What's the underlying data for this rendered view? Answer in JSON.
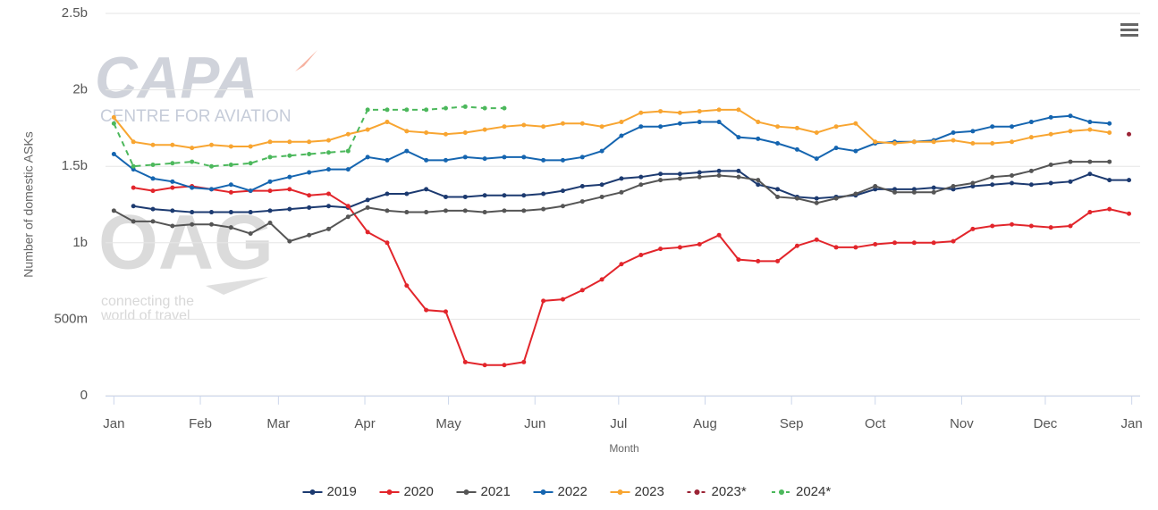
{
  "chart_data": {
    "type": "line",
    "y_axis_label": "Number of domestic ASKs",
    "x_axis_label": "Month",
    "watermark": {
      "logo_1": "CAPA",
      "logo_1_sub": "CENTRE FOR AVIATION",
      "logo_2": "OAG",
      "logo_2_sub_1": "connecting the",
      "logo_2_sub_2": "world of travel"
    },
    "xlim": [
      -3,
      368
    ],
    "xticks": [
      {
        "value": 0,
        "label": "Jan"
      },
      {
        "value": 31,
        "label": "Feb"
      },
      {
        "value": 59,
        "label": "Mar"
      },
      {
        "value": 90,
        "label": "Apr"
      },
      {
        "value": 120,
        "label": "May"
      },
      {
        "value": 151,
        "label": "Jun"
      },
      {
        "value": 181,
        "label": "Jul"
      },
      {
        "value": 212,
        "label": "Aug"
      },
      {
        "value": 243,
        "label": "Sep"
      },
      {
        "value": 273,
        "label": "Oct"
      },
      {
        "value": 304,
        "label": "Nov"
      },
      {
        "value": 334,
        "label": "Dec"
      },
      {
        "value": 365,
        "label": "Jan"
      }
    ],
    "ylim": [
      0,
      2.5
    ],
    "yticks": [
      {
        "value": 0,
        "label": "0"
      },
      {
        "value": 0.5,
        "label": "500m"
      },
      {
        "value": 1,
        "label": "1b"
      },
      {
        "value": 1.5,
        "label": "1.5b"
      },
      {
        "value": 2,
        "label": "2b"
      },
      {
        "value": 2.5,
        "label": "2.5b"
      }
    ],
    "grid": true,
    "x": [
      0,
      7,
      14,
      21,
      28,
      35,
      42,
      49,
      56,
      63,
      70,
      77,
      84,
      91,
      98,
      105,
      112,
      119,
      126,
      133,
      140,
      147,
      154,
      161,
      168,
      175,
      182,
      189,
      196,
      203,
      210,
      217,
      224,
      231,
      238,
      245,
      252,
      259,
      266,
      273,
      280,
      287,
      294,
      301,
      308,
      315,
      322,
      329,
      336,
      343,
      350,
      357,
      364
    ],
    "series": [
      {
        "name": "2019",
        "color": "#1c3a70",
        "dashed": false,
        "values": [
          null,
          1.24,
          1.22,
          1.21,
          1.2,
          1.2,
          1.2,
          1.2,
          1.21,
          1.22,
          1.23,
          1.24,
          1.23,
          1.28,
          1.32,
          1.32,
          1.35,
          1.3,
          1.3,
          1.31,
          1.31,
          1.31,
          1.32,
          1.34,
          1.37,
          1.38,
          1.42,
          1.43,
          1.45,
          1.45,
          1.46,
          1.47,
          1.47,
          1.38,
          1.35,
          1.3,
          1.29,
          1.3,
          1.31,
          1.35,
          1.35,
          1.35,
          1.36,
          1.35,
          1.37,
          1.38,
          1.39,
          1.38,
          1.39,
          1.4,
          1.45,
          1.41,
          1.41
        ]
      },
      {
        "name": "2020",
        "color": "#e2252b",
        "dashed": false,
        "values": [
          null,
          1.36,
          1.34,
          1.36,
          1.37,
          1.35,
          1.33,
          1.34,
          1.34,
          1.35,
          1.31,
          1.32,
          1.24,
          1.07,
          1.0,
          0.72,
          0.56,
          0.55,
          0.22,
          0.2,
          0.2,
          0.22,
          0.62,
          0.63,
          0.69,
          0.76,
          0.86,
          0.92,
          0.96,
          0.97,
          0.99,
          1.05,
          0.89,
          0.88,
          0.88,
          0.98,
          1.02,
          0.97,
          0.97,
          0.99,
          1.0,
          1.0,
          1.0,
          1.01,
          1.09,
          1.11,
          1.12,
          1.11,
          1.1,
          1.11,
          1.2,
          1.22,
          1.19
        ]
      },
      {
        "name": "2021",
        "color": "#555555",
        "dashed": false,
        "values": [
          1.21,
          1.14,
          1.14,
          1.11,
          1.12,
          1.12,
          1.1,
          1.06,
          1.13,
          1.01,
          1.05,
          1.09,
          1.17,
          1.23,
          1.21,
          1.2,
          1.2,
          1.21,
          1.21,
          1.2,
          1.21,
          1.21,
          1.22,
          1.24,
          1.27,
          1.3,
          1.33,
          1.38,
          1.41,
          1.42,
          1.43,
          1.44,
          1.43,
          1.41,
          1.3,
          1.29,
          1.26,
          1.29,
          1.32,
          1.37,
          1.33,
          1.33,
          1.33,
          1.37,
          1.39,
          1.43,
          1.44,
          1.47,
          1.51,
          1.53,
          1.53,
          1.53,
          null
        ]
      },
      {
        "name": "2022",
        "color": "#1565b0",
        "dashed": false,
        "values": [
          1.58,
          1.48,
          1.42,
          1.4,
          1.36,
          1.35,
          1.38,
          1.34,
          1.4,
          1.43,
          1.46,
          1.48,
          1.48,
          1.56,
          1.54,
          1.6,
          1.54,
          1.54,
          1.56,
          1.55,
          1.56,
          1.56,
          1.54,
          1.54,
          1.56,
          1.6,
          1.7,
          1.76,
          1.76,
          1.78,
          1.79,
          1.79,
          1.69,
          1.68,
          1.65,
          1.61,
          1.55,
          1.62,
          1.6,
          1.65,
          1.66,
          1.66,
          1.67,
          1.72,
          1.73,
          1.76,
          1.76,
          1.79,
          1.82,
          1.83,
          1.79,
          1.78,
          null
        ]
      },
      {
        "name": "2023",
        "color": "#f8a531",
        "dashed": false,
        "values": [
          1.82,
          1.66,
          1.64,
          1.64,
          1.62,
          1.64,
          1.63,
          1.63,
          1.66,
          1.66,
          1.66,
          1.67,
          1.71,
          1.74,
          1.79,
          1.73,
          1.72,
          1.71,
          1.72,
          1.74,
          1.76,
          1.77,
          1.76,
          1.78,
          1.78,
          1.76,
          1.79,
          1.85,
          1.86,
          1.85,
          1.86,
          1.87,
          1.87,
          1.79,
          1.76,
          1.75,
          1.72,
          1.76,
          1.78,
          1.66,
          1.65,
          1.66,
          1.66,
          1.67,
          1.65,
          1.65,
          1.66,
          1.69,
          1.71,
          1.73,
          1.74,
          1.72,
          null
        ]
      },
      {
        "name": "2023*",
        "color": "#9b2335",
        "dashed": true,
        "values": [
          null,
          null,
          null,
          null,
          null,
          null,
          null,
          null,
          null,
          null,
          null,
          null,
          null,
          null,
          null,
          null,
          null,
          null,
          null,
          null,
          null,
          null,
          null,
          null,
          null,
          null,
          null,
          null,
          null,
          null,
          null,
          null,
          null,
          null,
          null,
          null,
          null,
          null,
          null,
          null,
          null,
          null,
          null,
          null,
          null,
          null,
          null,
          null,
          null,
          null,
          null,
          null,
          1.71
        ]
      },
      {
        "name": "2024*",
        "color": "#4cb85c",
        "dashed": true,
        "values": [
          1.78,
          1.5,
          1.51,
          1.52,
          1.53,
          1.5,
          1.51,
          1.52,
          1.56,
          1.57,
          1.58,
          1.59,
          1.6,
          1.87,
          1.87,
          1.87,
          1.87,
          1.88,
          1.89,
          1.88,
          1.88,
          null,
          null,
          null,
          null,
          null,
          null,
          null,
          null,
          null,
          null,
          null,
          null,
          null,
          null,
          null,
          null,
          null,
          null,
          null,
          null,
          null,
          null,
          null,
          null,
          null,
          null,
          null,
          null,
          null,
          null,
          null,
          null
        ]
      }
    ]
  }
}
